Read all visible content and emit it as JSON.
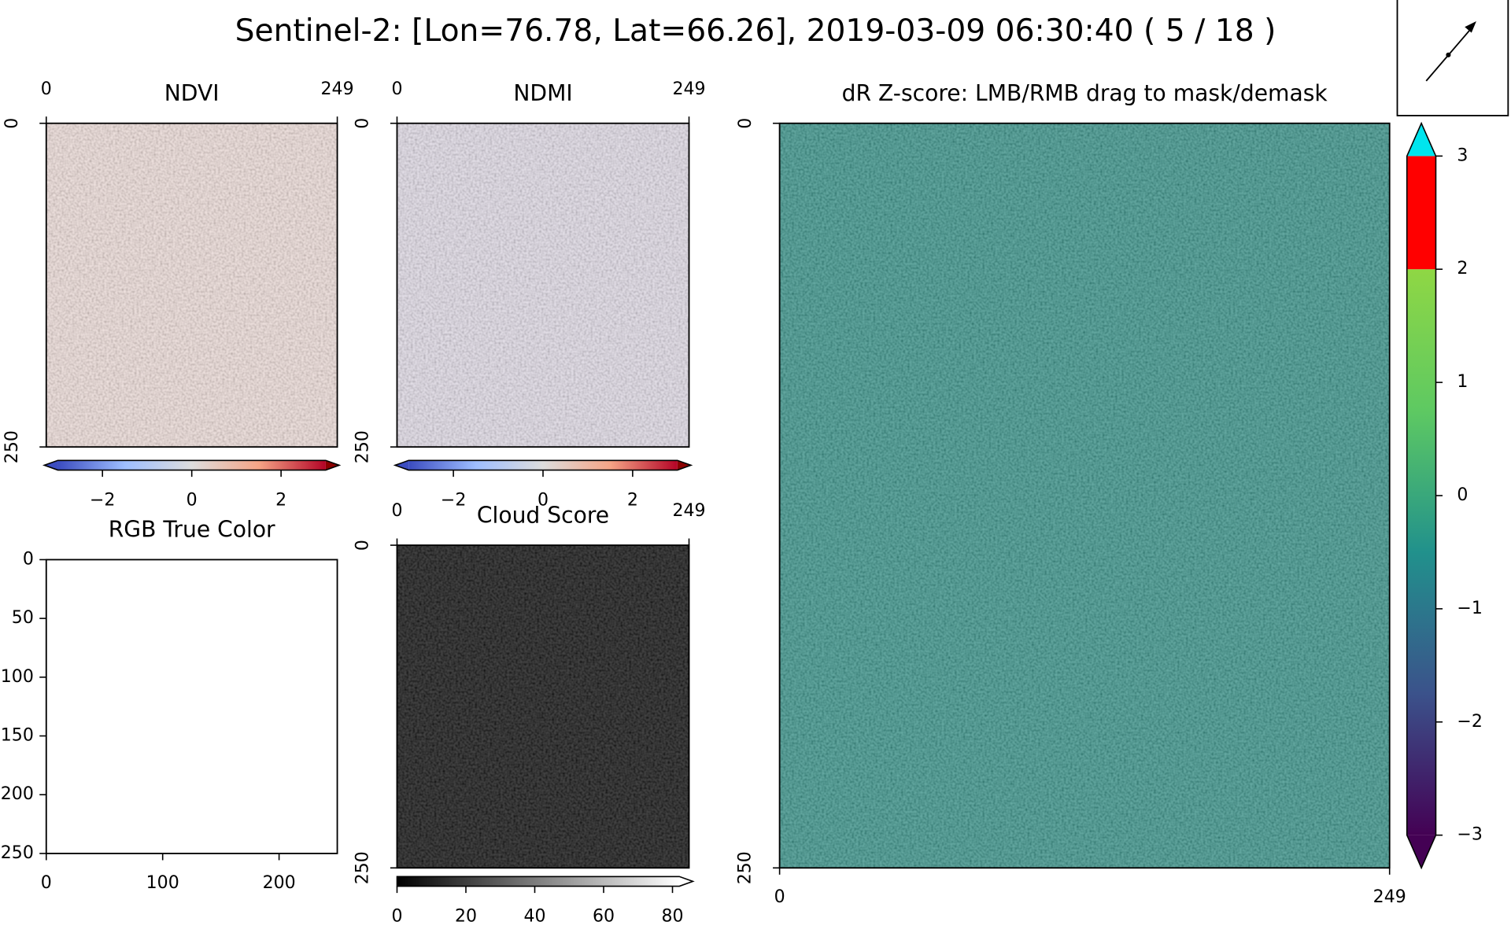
{
  "title": "Sentinel-2: [Lon=76.78, Lat=66.26], 2019-03-09 06:30:40 ( 5 / 18 )",
  "chart_data": [
    {
      "type": "image",
      "title": "NDVI",
      "xlim": [
        0,
        249
      ],
      "xticks": [
        0,
        249
      ],
      "x_axis": "top",
      "ylim": [
        0,
        250
      ],
      "yticks": [
        0,
        250
      ],
      "fill": "#ead8d4",
      "colorbar": {
        "orientation": "horizontal",
        "lim": [
          -3,
          3
        ],
        "ticks": [
          {
            "value": -2,
            "label": "−2"
          },
          0,
          2
        ],
        "colors": [
          "#3b4cc0",
          "#9ebeff",
          "#dddddd",
          "#f5a486",
          "#b40426"
        ],
        "under_color": "#3b4cc0",
        "over_color": "#8b0000"
      }
    },
    {
      "type": "image",
      "title": "NDMI",
      "xlim": [
        0,
        249
      ],
      "xticks": [
        0,
        249
      ],
      "x_axis": "top",
      "ylim": [
        0,
        250
      ],
      "yticks": [
        0,
        250
      ],
      "fill": "#dcd6e2",
      "colorbar": {
        "orientation": "horizontal",
        "lim": [
          -3,
          3
        ],
        "ticks": [
          {
            "value": -2,
            "label": "−2"
          },
          0,
          2
        ],
        "colors": [
          "#3b4cc0",
          "#9ebeff",
          "#dddddd",
          "#f5a486",
          "#b40426"
        ],
        "under_color": "#3b4cc0",
        "over_color": "#8b0000"
      }
    },
    {
      "type": "image",
      "title": "RGB True Color",
      "xlim": [
        0,
        250
      ],
      "xticks": [
        0,
        100,
        200
      ],
      "x_axis": "bottom",
      "ylim": [
        0,
        250
      ],
      "yticks": [
        0,
        50,
        100,
        150,
        200,
        250
      ],
      "fill": "#ffffff"
    },
    {
      "type": "image",
      "title": "Cloud Score",
      "xlim": [
        0,
        249
      ],
      "xticks": [
        0,
        249
      ],
      "x_axis": "top",
      "ylim": [
        0,
        250
      ],
      "yticks": [
        0,
        250
      ],
      "fill": "#000000",
      "colorbar": {
        "orientation": "horizontal",
        "lim": [
          0,
          82
        ],
        "ticks": [
          0,
          20,
          40,
          60,
          80
        ],
        "colors": [
          "#000000",
          "#ffffff"
        ],
        "over_color": "#ffffff"
      }
    },
    {
      "type": "image",
      "title": "dR Z-score: LMB/RMB drag to mask/demask",
      "xlim": [
        0,
        249
      ],
      "xticks": [
        0,
        249
      ],
      "x_axis": "bottom",
      "ylim": [
        0,
        250
      ],
      "yticks": [
        0,
        250
      ],
      "fill": "#2b8a80",
      "colorbar": {
        "orientation": "vertical",
        "lim": [
          -3,
          3
        ],
        "ticks": [
          {
            "value": -3,
            "label": "−3"
          },
          {
            "value": -2,
            "label": "−2"
          },
          {
            "value": -1,
            "label": "−1"
          },
          0,
          1,
          2,
          3
        ],
        "colors": [
          "#440154",
          "#3b528b",
          "#21918c",
          "#5ec962",
          "#8fd744"
        ],
        "top_band_color": "#ff0000",
        "under_color": "#440154",
        "over_color": "#00e5ee"
      }
    }
  ]
}
